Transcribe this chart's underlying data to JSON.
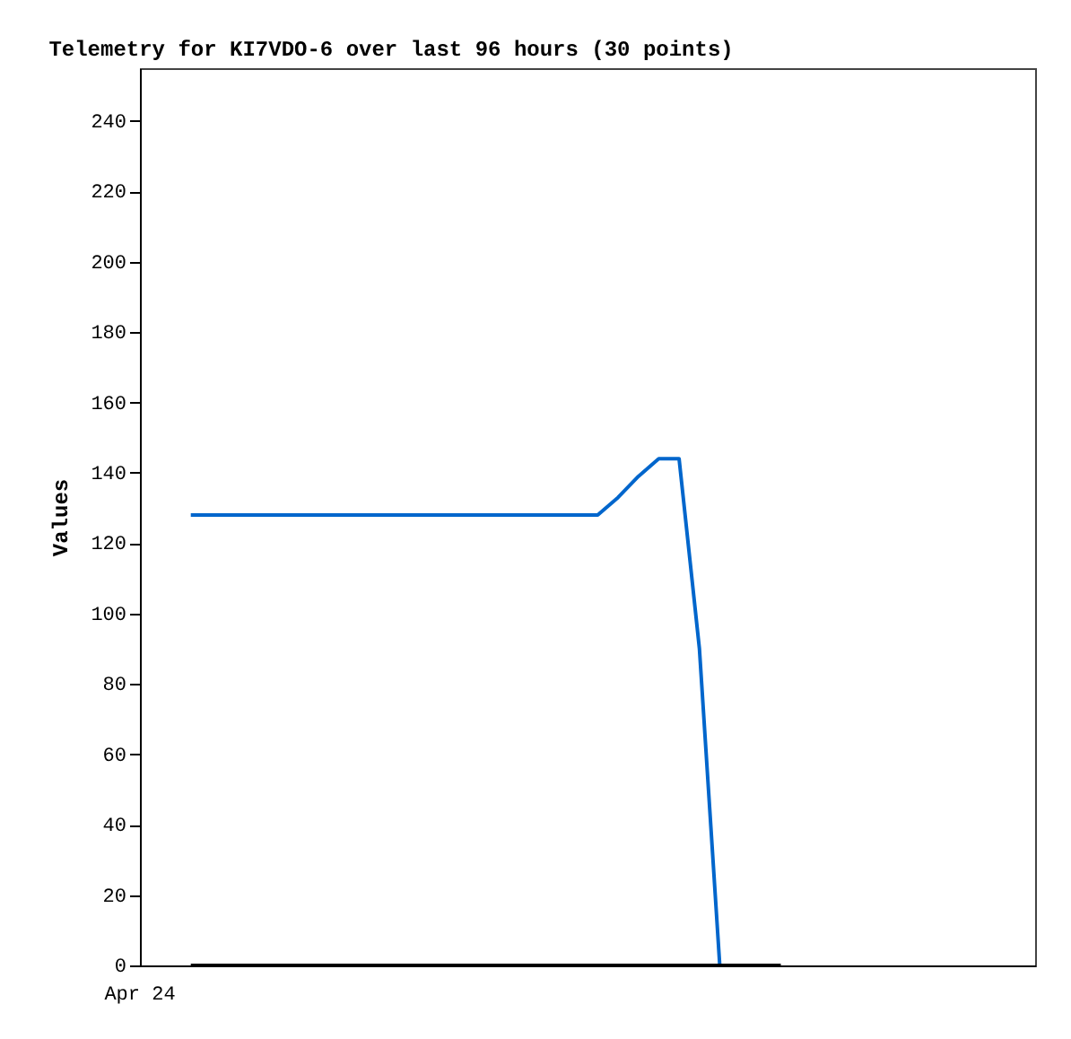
{
  "chart_data": {
    "type": "line",
    "title": "Telemetry for KI7VDO-6 over last 96 hours (30 points)",
    "ylabel": "Values",
    "annotations": [
      "Apr 24"
    ],
    "categories": [
      null,
      null,
      null,
      null,
      null,
      null,
      null,
      null,
      null,
      null,
      null,
      null,
      null,
      null,
      null,
      null,
      null,
      null,
      null,
      null,
      null,
      null,
      null,
      null,
      null,
      null,
      null,
      null,
      null,
      null,
      null,
      null,
      null,
      null,
      null,
      null,
      null,
      null,
      null,
      null,
      null,
      null,
      null,
      null
    ],
    "ylim": [
      0,
      255
    ],
    "yticks": [
      0,
      20,
      40,
      60,
      80,
      100,
      120,
      140,
      160,
      180,
      200,
      220,
      240
    ],
    "line_style": "solid",
    "series": [
      {
        "color": "#0066cc",
        "values": [
          null,
          null,
          128,
          128,
          128,
          128,
          128,
          128,
          128,
          128,
          128,
          128,
          128,
          128,
          128,
          128,
          128,
          128,
          128,
          128,
          128,
          128,
          128,
          133,
          139,
          144,
          144,
          90,
          0,
          null,
          null,
          null,
          null,
          null,
          null,
          null,
          null,
          null,
          null,
          null,
          null,
          null,
          null,
          null
        ]
      },
      {
        "color": "#000000",
        "values": [
          null,
          null,
          0,
          0,
          0,
          0,
          0,
          0,
          0,
          0,
          0,
          0,
          0,
          0,
          0,
          0,
          0,
          0,
          0,
          0,
          0,
          0,
          0,
          0,
          0,
          0,
          0,
          0,
          0,
          0,
          0,
          0,
          null,
          null,
          null,
          null,
          null,
          null,
          null,
          null,
          null,
          null,
          null,
          null
        ]
      }
    ]
  }
}
